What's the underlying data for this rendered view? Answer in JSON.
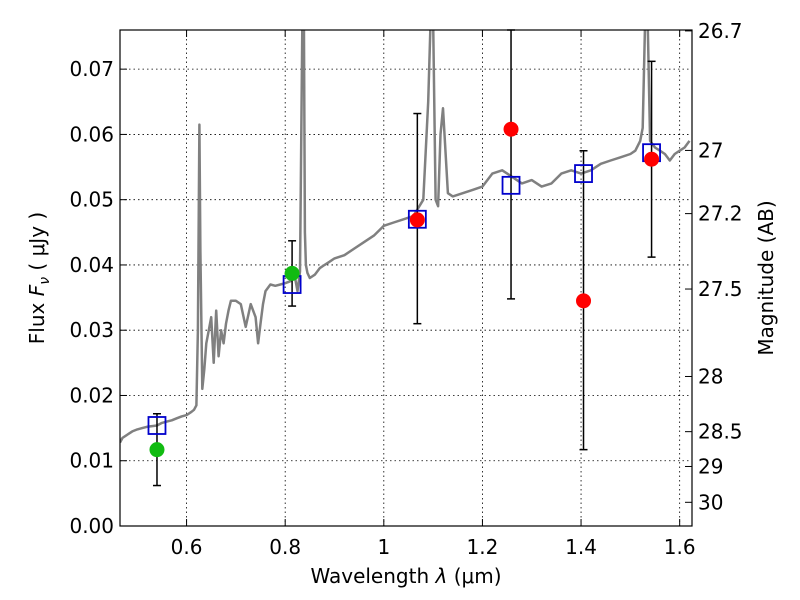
{
  "chart_data": {
    "type": "scatter",
    "xlabel": "Wavelength",
    "xlabel_symbol": "λ",
    "xlabel_unit": "(μm)",
    "ylabel": "Flux",
    "ylabel_symbol": "F",
    "ylabel_subscript": "ν",
    "ylabel_unit": "( μJy )",
    "ylabel_right": "Magnitude (AB)",
    "xlim": [
      0.465,
      1.625
    ],
    "ylim": [
      0.0,
      0.076
    ],
    "grid": true,
    "x_ticks": [
      {
        "value": 0.6,
        "label": "0.6"
      },
      {
        "value": 0.8,
        "label": "0.8"
      },
      {
        "value": 1.0,
        "label": "1"
      },
      {
        "value": 1.2,
        "label": "1.2"
      },
      {
        "value": 1.4,
        "label": "1.4"
      },
      {
        "value": 1.6,
        "label": "1.6"
      }
    ],
    "y_ticks": [
      {
        "value": 0.0,
        "label": "0.00"
      },
      {
        "value": 0.01,
        "label": "0.01"
      },
      {
        "value": 0.02,
        "label": "0.02"
      },
      {
        "value": 0.03,
        "label": "0.03"
      },
      {
        "value": 0.04,
        "label": "0.04"
      },
      {
        "value": 0.05,
        "label": "0.05"
      },
      {
        "value": 0.06,
        "label": "0.06"
      },
      {
        "value": 0.07,
        "label": "0.07"
      }
    ],
    "right_ticks": [
      {
        "mag": 26.7,
        "label": "26.7"
      },
      {
        "mag": 27,
        "label": "27"
      },
      {
        "mag": 27.2,
        "label": "27.2"
      },
      {
        "mag": 27.5,
        "label": "27.5"
      },
      {
        "mag": 28,
        "label": "28"
      },
      {
        "mag": 28.5,
        "label": "28.5"
      },
      {
        "mag": 29,
        "label": "29"
      },
      {
        "mag": 30,
        "label": "30"
      }
    ],
    "model_spectrum": {
      "color": "#808080",
      "x": [
        0.465,
        0.47,
        0.48,
        0.49,
        0.5,
        0.51,
        0.52,
        0.53,
        0.54,
        0.55,
        0.56,
        0.57,
        0.58,
        0.59,
        0.6,
        0.61,
        0.615,
        0.62,
        0.623,
        0.626,
        0.628,
        0.632,
        0.636,
        0.64,
        0.645,
        0.65,
        0.655,
        0.66,
        0.665,
        0.67,
        0.675,
        0.68,
        0.685,
        0.69,
        0.7,
        0.71,
        0.72,
        0.73,
        0.74,
        0.745,
        0.75,
        0.755,
        0.76,
        0.77,
        0.78,
        0.79,
        0.8,
        0.81,
        0.82,
        0.825,
        0.83,
        0.835,
        0.838,
        0.84,
        0.842,
        0.845,
        0.85,
        0.86,
        0.87,
        0.88,
        0.89,
        0.9,
        0.92,
        0.94,
        0.96,
        0.98,
        1.0,
        1.02,
        1.04,
        1.06,
        1.08,
        1.09,
        1.095,
        1.1,
        1.105,
        1.11,
        1.115,
        1.12,
        1.13,
        1.14,
        1.16,
        1.18,
        1.2,
        1.22,
        1.24,
        1.26,
        1.28,
        1.3,
        1.32,
        1.34,
        1.36,
        1.38,
        1.4,
        1.42,
        1.44,
        1.46,
        1.48,
        1.5,
        1.51,
        1.52,
        1.525,
        1.53,
        1.535,
        1.54,
        1.55,
        1.56,
        1.57,
        1.58,
        1.59,
        1.6,
        1.61,
        1.62
      ],
      "y": [
        0.0128,
        0.0135,
        0.014,
        0.0145,
        0.0148,
        0.015,
        0.0152,
        0.0153,
        0.0154,
        0.0158,
        0.016,
        0.0162,
        0.0165,
        0.0168,
        0.017,
        0.0175,
        0.0178,
        0.0185,
        0.03,
        0.0615,
        0.042,
        0.021,
        0.024,
        0.028,
        0.03,
        0.032,
        0.025,
        0.033,
        0.026,
        0.03,
        0.028,
        0.031,
        0.033,
        0.0345,
        0.0345,
        0.034,
        0.0305,
        0.034,
        0.032,
        0.028,
        0.031,
        0.034,
        0.036,
        0.037,
        0.0368,
        0.037,
        0.0372,
        0.0375,
        0.038,
        0.036,
        0.039,
        0.078,
        0.078,
        0.045,
        0.04,
        0.0388,
        0.038,
        0.0385,
        0.0395,
        0.04,
        0.0405,
        0.041,
        0.0415,
        0.0425,
        0.0435,
        0.0445,
        0.046,
        0.0465,
        0.047,
        0.0475,
        0.05,
        0.065,
        0.078,
        0.078,
        0.05,
        0.049,
        0.06,
        0.064,
        0.051,
        0.0505,
        0.051,
        0.0515,
        0.052,
        0.054,
        0.0545,
        0.0535,
        0.0525,
        0.053,
        0.052,
        0.0525,
        0.054,
        0.0545,
        0.054,
        0.0545,
        0.0555,
        0.056,
        0.0565,
        0.057,
        0.0575,
        0.059,
        0.061,
        0.078,
        0.078,
        0.059,
        0.058,
        0.0575,
        0.057,
        0.056,
        0.057,
        0.0575,
        0.058,
        0.059
      ]
    },
    "series": [
      {
        "name": "blue-squares",
        "marker": "open-square",
        "color": "#0000cc",
        "points": [
          {
            "x": 0.54,
            "y": 0.0154
          },
          {
            "x": 0.814,
            "y": 0.037
          },
          {
            "x": 1.068,
            "y": 0.047
          },
          {
            "x": 1.258,
            "y": 0.0522
          },
          {
            "x": 1.405,
            "y": 0.054
          },
          {
            "x": 1.543,
            "y": 0.0572
          }
        ]
      },
      {
        "name": "green-dots",
        "marker": "filled-circle",
        "color": "#11bb11",
        "points": [
          {
            "x": 0.54,
            "y": 0.0117
          },
          {
            "x": 0.814,
            "y": 0.0387
          }
        ]
      },
      {
        "name": "red-dots",
        "marker": "filled-circle",
        "color": "#ff0000",
        "points": [
          {
            "x": 1.068,
            "y": 0.0469
          },
          {
            "x": 1.258,
            "y": 0.0608
          },
          {
            "x": 1.405,
            "y": 0.0345
          },
          {
            "x": 1.543,
            "y": 0.0562
          }
        ]
      }
    ],
    "error_bars": [
      {
        "x": 0.54,
        "low": 0.0062,
        "high": 0.0172
      },
      {
        "x": 0.814,
        "low": 0.0337,
        "high": 0.0437
      },
      {
        "x": 1.068,
        "low": 0.031,
        "high": 0.0632
      },
      {
        "x": 1.258,
        "low": 0.0348,
        "high": 0.076
      },
      {
        "x": 1.405,
        "low": 0.0117,
        "high": 0.0575
      },
      {
        "x": 1.543,
        "low": 0.0412,
        "high": 0.0712
      }
    ]
  }
}
